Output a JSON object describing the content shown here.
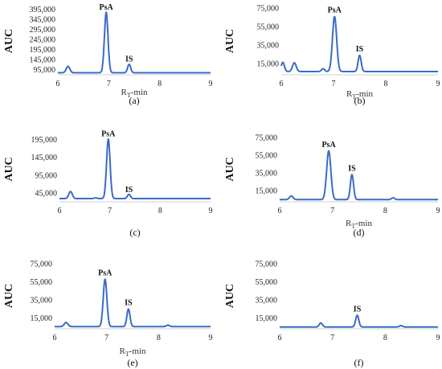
{
  "chart_data": [
    {
      "type": "line",
      "panel_label": "(a)",
      "ylabel": "AUC",
      "xlabel_main": "R",
      "xlabel_sub": "T",
      "xlabel_suffix": "-min",
      "xlim": [
        6,
        9
      ],
      "x_ticks": [
        "6",
        "7",
        "8",
        "9"
      ],
      "y_ticks": [
        {
          "value": 95000,
          "label": "95,000"
        },
        {
          "value": 145000,
          "label": "145,000"
        },
        {
          "value": 195000,
          "label": "195,000"
        },
        {
          "value": 245000,
          "label": "245,000"
        },
        {
          "value": 295000,
          "label": "295,000"
        },
        {
          "value": 345000,
          "label": "345,000"
        },
        {
          "value": 395000,
          "label": "395,000"
        }
      ],
      "ylim": [
        70000,
        405000
      ],
      "baseline": 80000,
      "peaks": [
        {
          "x": 6.2,
          "height": 112000,
          "width": 0.035
        },
        {
          "x": 6.95,
          "height": 380000,
          "width": 0.035
        },
        {
          "x": 7.4,
          "height": 122000,
          "width": 0.03
        }
      ],
      "annotations": [
        {
          "text": "PsA",
          "x": 6.95,
          "y": 385000
        },
        {
          "text": "IS",
          "x": 7.4,
          "y": 127000
        }
      ]
    },
    {
      "type": "line",
      "panel_label": "(b)",
      "ylabel": "AUC",
      "xlabel_main": "R",
      "xlabel_sub": "T",
      "xlabel_suffix": "-min",
      "xlim": [
        6,
        9
      ],
      "x_ticks": [
        "6",
        "7",
        "8",
        "9"
      ],
      "y_ticks": [
        {
          "value": 15000,
          "label": "15,000"
        },
        {
          "value": 35000,
          "label": "35,000"
        },
        {
          "value": 55000,
          "label": "55,000"
        },
        {
          "value": 75000,
          "label": "75,000"
        }
      ],
      "ylim": [
        3000,
        76000
      ],
      "baseline": 6500,
      "peaks": [
        {
          "x": 6.03,
          "height": 16500,
          "width": 0.03
        },
        {
          "x": 6.25,
          "height": 16000,
          "width": 0.035
        },
        {
          "x": 6.8,
          "height": 9500,
          "width": 0.03
        },
        {
          "x": 7.02,
          "height": 66000,
          "width": 0.04
        },
        {
          "x": 7.5,
          "height": 24000,
          "width": 0.03
        }
      ],
      "annotations": [
        {
          "text": "PsA",
          "x": 7.02,
          "y": 68500
        },
        {
          "text": "IS",
          "x": 7.5,
          "y": 26500
        }
      ]
    },
    {
      "type": "line",
      "panel_label": "(c)",
      "ylabel": "AUC",
      "xlabel_main": "",
      "xlabel_sub": "",
      "xlabel_suffix": "",
      "xlim": [
        6,
        9
      ],
      "x_ticks": [
        "6",
        "7",
        "8",
        "9"
      ],
      "y_ticks": [
        {
          "value": 45000,
          "label": "45,000"
        },
        {
          "value": 95000,
          "label": "95,000"
        },
        {
          "value": 145000,
          "label": "145,000"
        },
        {
          "value": 195000,
          "label": "195,000"
        }
      ],
      "ylim": [
        20000,
        203000
      ],
      "baseline": 29000,
      "peaks": [
        {
          "x": 6.22,
          "height": 49000,
          "width": 0.035
        },
        {
          "x": 6.72,
          "height": 31000,
          "width": 0.03
        },
        {
          "x": 6.97,
          "height": 197000,
          "width": 0.035
        },
        {
          "x": 7.38,
          "height": 41000,
          "width": 0.03
        }
      ],
      "annotations": [
        {
          "text": "PsA",
          "x": 6.97,
          "y": 200000
        },
        {
          "text": "IS",
          "x": 7.38,
          "y": 43000
        }
      ]
    },
    {
      "type": "line",
      "panel_label": "(d)",
      "ylabel": "AUC",
      "xlabel_main": "R",
      "xlabel_sub": "T",
      "xlabel_suffix": "-min",
      "xlim": [
        6,
        9
      ],
      "x_ticks": [
        "6",
        "7",
        "8",
        "9"
      ],
      "y_ticks": [
        {
          "value": 15000,
          "label": "15,000"
        },
        {
          "value": 35000,
          "label": "35,000"
        },
        {
          "value": 55000,
          "label": "55,000"
        },
        {
          "value": 75000,
          "label": "75,000"
        }
      ],
      "ylim": [
        2000,
        76000
      ],
      "baseline": 4500,
      "peaks": [
        {
          "x": 6.22,
          "height": 8500,
          "width": 0.035
        },
        {
          "x": 6.93,
          "height": 60000,
          "width": 0.04
        },
        {
          "x": 7.37,
          "height": 33000,
          "width": 0.03
        },
        {
          "x": 8.15,
          "height": 6500,
          "width": 0.03
        }
      ],
      "annotations": [
        {
          "text": "PsA",
          "x": 6.93,
          "y": 62500
        },
        {
          "text": "IS",
          "x": 7.37,
          "y": 35500
        }
      ]
    },
    {
      "type": "line",
      "panel_label": "(e)",
      "ylabel": "AUC",
      "xlabel_main": "R",
      "xlabel_sub": "T",
      "xlabel_suffix": "-min",
      "xlim": [
        6,
        9
      ],
      "x_ticks": [
        "6",
        "7",
        "8",
        "9"
      ],
      "y_ticks": [
        {
          "value": 15000,
          "label": "15,000"
        },
        {
          "value": 35000,
          "label": "35,000"
        },
        {
          "value": 55000,
          "label": "55,000"
        },
        {
          "value": 75000,
          "label": "75,000"
        }
      ],
      "ylim": [
        3000,
        76000
      ],
      "baseline": 5500,
      "peaks": [
        {
          "x": 6.22,
          "height": 10000,
          "width": 0.035
        },
        {
          "x": 6.97,
          "height": 58000,
          "width": 0.035
        },
        {
          "x": 7.42,
          "height": 25000,
          "width": 0.03
        },
        {
          "x": 8.18,
          "height": 7000,
          "width": 0.03
        }
      ],
      "annotations": [
        {
          "text": "PsA",
          "x": 6.97,
          "y": 60500
        },
        {
          "text": "IS",
          "x": 7.42,
          "y": 27500
        }
      ]
    },
    {
      "type": "line",
      "panel_label": "(f)",
      "ylabel": "AUC",
      "xlabel_main": "",
      "xlabel_sub": "",
      "xlabel_suffix": "",
      "xlim": [
        6,
        9
      ],
      "x_ticks": [
        "6",
        "7",
        "8",
        "9"
      ],
      "y_ticks": [
        {
          "value": 15000,
          "label": "15,000"
        },
        {
          "value": 35000,
          "label": "35,000"
        },
        {
          "value": 55000,
          "label": "55,000"
        },
        {
          "value": 75000,
          "label": "75,000"
        }
      ],
      "ylim": [
        3000,
        76000
      ],
      "baseline": 5000,
      "peaks": [
        {
          "x": 6.78,
          "height": 9500,
          "width": 0.03
        },
        {
          "x": 7.47,
          "height": 18000,
          "width": 0.03
        },
        {
          "x": 8.3,
          "height": 6500,
          "width": 0.03
        }
      ],
      "annotations": [
        {
          "text": "IS",
          "x": 7.47,
          "y": 20500
        }
      ]
    }
  ]
}
